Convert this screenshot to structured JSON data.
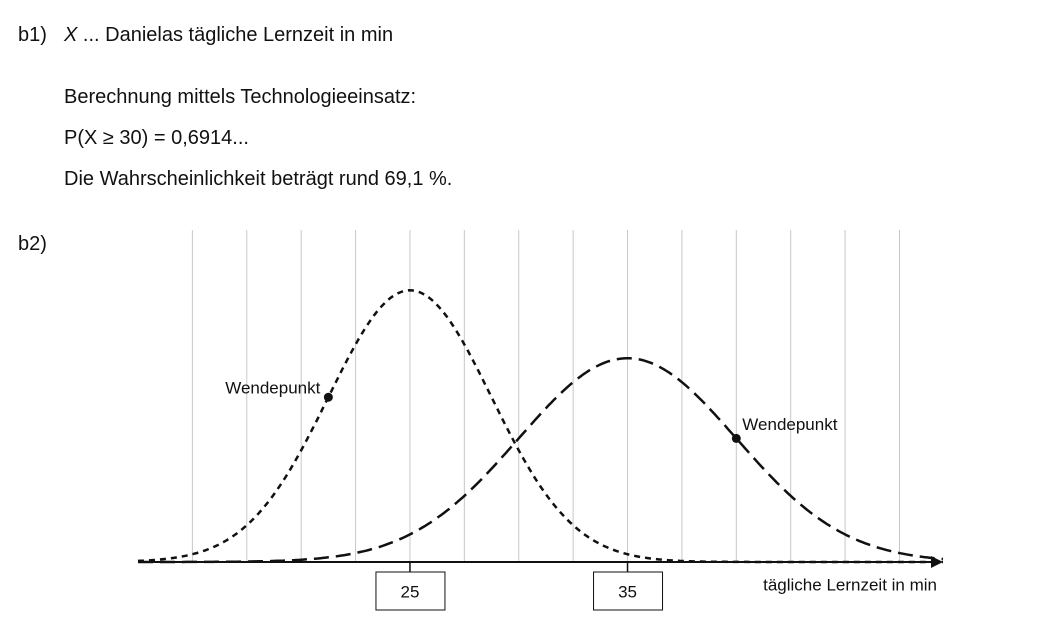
{
  "b1": {
    "label": "b1)",
    "variable": "X",
    "definition": "... Danielas tägliche Lernzeit in min",
    "lines": [
      "Berechnung mittels Technologieeinsatz:",
      "P(X ≥ 30) = 0,6914...",
      "Die Wahrscheinlichkeit beträgt rund 69,1 %."
    ]
  },
  "b2": {
    "label": "b2)",
    "chart_data": {
      "type": "normal-density",
      "x_label": "tägliche Lernzeit in min",
      "xlim": [
        12.5,
        49.5
      ],
      "ylim": [
        0,
        0.13
      ],
      "xticks": [
        25,
        35
      ],
      "xgrid": [
        15,
        17.5,
        20,
        22.5,
        25,
        27.5,
        30,
        32.5,
        35,
        37.5,
        40,
        42.5,
        45,
        47.5
      ],
      "series": [
        {
          "mean": 25,
          "sd": 3.75,
          "dash": "short"
        },
        {
          "mean": 35,
          "sd": 5,
          "dash": "long"
        }
      ],
      "annotations": [
        {
          "text": "Wendepunkt",
          "series": 0,
          "side": "left"
        },
        {
          "text": "Wendepunkt",
          "series": 1,
          "side": "right"
        }
      ]
    }
  }
}
